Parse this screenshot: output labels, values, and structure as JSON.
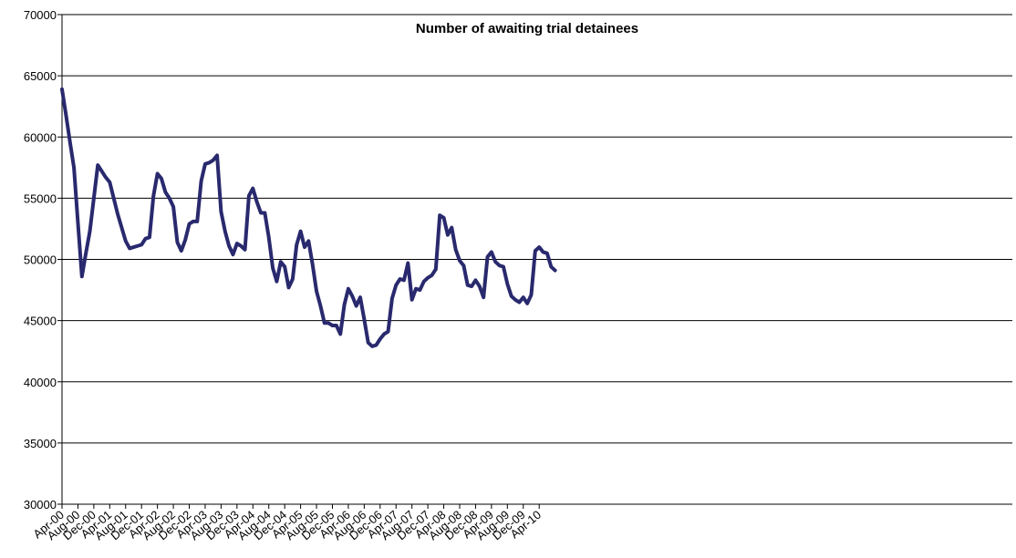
{
  "chart_data": {
    "type": "line",
    "title": "Number of awaiting trial detainees",
    "xlabel": "",
    "ylabel": "",
    "ylim": [
      30000,
      70000
    ],
    "yticks": [
      30000,
      35000,
      40000,
      45000,
      50000,
      55000,
      60000,
      65000,
      70000
    ],
    "xtick_labels": [
      "Apr-00",
      "Aug-00",
      "Dec-00",
      "Apr-01",
      "Aug-01",
      "Dec-01",
      "Apr-02",
      "Aug-02",
      "Dec-02",
      "Apr-03",
      "Aug-03",
      "Dec-03",
      "Apr-04",
      "Aug-04",
      "Dec-04",
      "Apr-05",
      "Aug-05",
      "Dec-05",
      "Apr-06",
      "Aug-06",
      "Dec-06",
      "Apr-07",
      "Aug-07",
      "Dec-07",
      "Apr-08",
      "Aug-08",
      "Dec-08",
      "Apr-09",
      "Aug-09",
      "Dec-09",
      "Apr-10"
    ],
    "grid": "horizontal",
    "legend": "none",
    "line_color": "#29296e",
    "x_start": "Apr-00",
    "x_step": "1 month",
    "series": [
      {
        "values": [
          63900,
          61800,
          59600,
          57500,
          53000,
          48600,
          50500,
          52300,
          55000,
          57700,
          57200,
          56700,
          56300,
          55000,
          53700,
          52600,
          51500,
          50900,
          51000,
          51100,
          51200,
          51700,
          51800,
          55200,
          57000,
          56600,
          55500,
          55000,
          54300,
          51400,
          50700,
          51600,
          52900,
          53100,
          53100,
          56400,
          57800,
          57900,
          58100,
          58500,
          53900,
          52300,
          51100,
          50400,
          51300,
          51100,
          50800,
          55200,
          55800,
          54700,
          53800,
          53800,
          51800,
          49300,
          48200,
          49800,
          49400,
          47700,
          48400,
          51200,
          52300,
          51000,
          51500,
          49600,
          47400,
          46200,
          44800,
          44800,
          44600,
          44600,
          43900,
          46300,
          47600,
          47000,
          46200,
          46900,
          45100,
          43200,
          42900,
          43000,
          43500,
          43900,
          44100,
          46800,
          47900,
          48400,
          48300,
          49700,
          46700,
          47600,
          47500,
          48200,
          48500,
          48700,
          49200,
          53600,
          53400,
          52000,
          52600,
          50800,
          49900,
          49500,
          47900,
          47800,
          48300,
          47800,
          46900,
          50200,
          50600,
          49800,
          49500,
          49400,
          48000,
          47000,
          46700,
          46500,
          46900,
          46400,
          47100,
          50700,
          51000,
          50600,
          50500,
          49400,
          49100
        ]
      }
    ]
  }
}
